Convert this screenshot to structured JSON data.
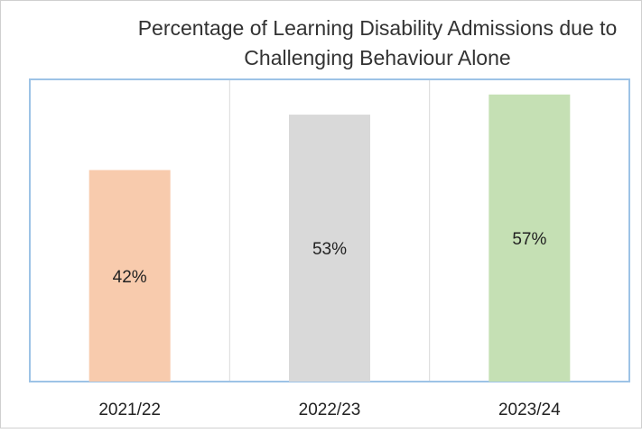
{
  "chart_data": {
    "type": "bar",
    "title": "Percentage of Learning Disability Admissions due to Challenging Behaviour Alone",
    "categories": [
      "2021/22",
      "2022/23",
      "2023/24"
    ],
    "values": [
      42,
      53,
      57
    ],
    "value_labels": [
      "42%",
      "53%",
      "57%"
    ],
    "colors": [
      "#f8cbad",
      "#d9d9d9",
      "#c5e0b4"
    ],
    "ylim": [
      0,
      60
    ]
  }
}
